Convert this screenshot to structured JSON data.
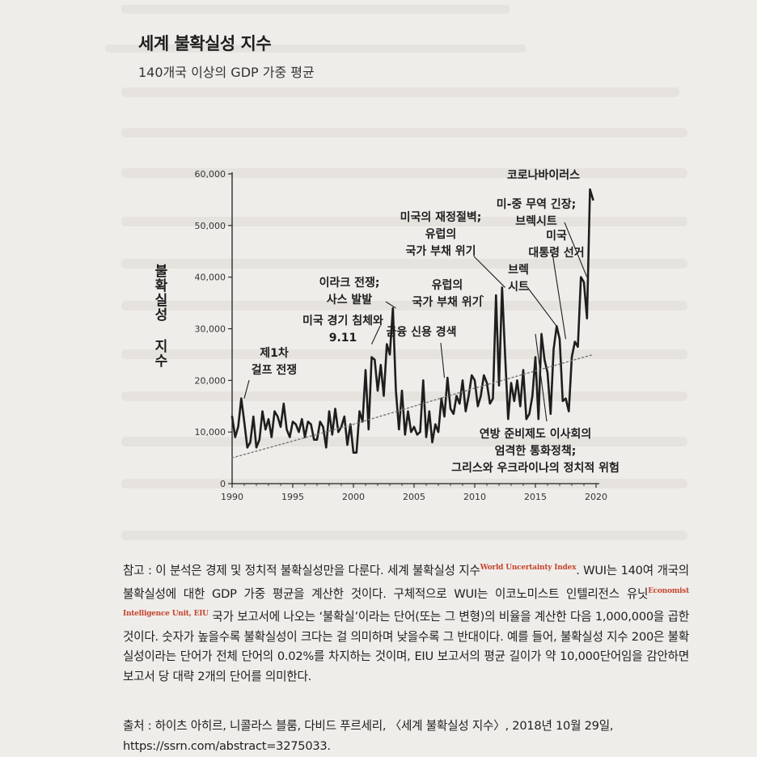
{
  "title": "세계 불확실성 지수",
  "subtitle": "140개국 이상의 GDP 가중 평균",
  "chart_data": {
    "type": "line",
    "title": "세계 불확실성 지수",
    "subtitle": "140개국 이상의 GDP 가중 평균",
    "ylabel": "불확실성 지수",
    "xlabel": "",
    "xlim": [
      1990,
      2020
    ],
    "ylim": [
      0,
      60000
    ],
    "x_ticks": [
      1990,
      1995,
      2000,
      2005,
      2010,
      2015,
      2020
    ],
    "x_tick_labels": [
      "1990",
      "1995",
      "2000",
      "2005",
      "2010",
      "2015",
      "2020"
    ],
    "y_ticks": [
      0,
      10000,
      20000,
      30000,
      40000,
      50000,
      60000
    ],
    "y_tick_labels": [
      "0",
      "10,000",
      "20,000",
      "30,000",
      "40,000",
      "50,000",
      "60,000"
    ],
    "grid": false,
    "series": [
      {
        "style": "solid",
        "x": [
          1990.0,
          1990.25,
          1990.5,
          1990.75,
          1991.0,
          1991.25,
          1991.5,
          1991.75,
          1992.0,
          1992.25,
          1992.5,
          1992.75,
          1993.0,
          1993.25,
          1993.5,
          1993.75,
          1994.0,
          1994.25,
          1994.5,
          1994.75,
          1995.0,
          1995.25,
          1995.5,
          1995.75,
          1996.0,
          1996.25,
          1996.5,
          1996.75,
          1997.0,
          1997.25,
          1997.5,
          1997.75,
          1998.0,
          1998.25,
          1998.5,
          1998.75,
          1999.0,
          1999.25,
          1999.5,
          1999.75,
          2000.0,
          2000.25,
          2000.5,
          2000.75,
          2001.0,
          2001.25,
          2001.5,
          2001.75,
          2002.0,
          2002.25,
          2002.5,
          2002.75,
          2003.0,
          2003.25,
          2003.5,
          2003.75,
          2004.0,
          2004.25,
          2004.5,
          2004.75,
          2005.0,
          2005.25,
          2005.5,
          2005.75,
          2006.0,
          2006.25,
          2006.5,
          2006.75,
          2007.0,
          2007.25,
          2007.5,
          2007.75,
          2008.0,
          2008.25,
          2008.5,
          2008.75,
          2009.0,
          2009.25,
          2009.5,
          2009.75,
          2010.0,
          2010.25,
          2010.5,
          2010.75,
          2011.0,
          2011.25,
          2011.5,
          2011.75,
          2012.0,
          2012.25,
          2012.5,
          2012.75,
          2013.0,
          2013.25,
          2013.5,
          2013.75,
          2014.0,
          2014.25,
          2014.5,
          2014.75,
          2015.0,
          2015.25,
          2015.5,
          2015.75,
          2016.0,
          2016.25,
          2016.5,
          2016.75,
          2017.0,
          2017.25,
          2017.5,
          2017.75,
          2018.0,
          2018.25,
          2018.5,
          2018.75,
          2019.0,
          2019.25,
          2019.5,
          2019.75
        ],
        "y": [
          13000,
          9000,
          11000,
          16500,
          12000,
          7000,
          8000,
          13000,
          7000,
          8500,
          14000,
          10500,
          12500,
          9000,
          14000,
          13000,
          11000,
          15500,
          10500,
          9000,
          12000,
          11500,
          10000,
          12500,
          9000,
          12000,
          11500,
          8500,
          8500,
          12000,
          11000,
          7000,
          14000,
          9500,
          14500,
          10000,
          11000,
          13000,
          7500,
          11500,
          6000,
          6000,
          14000,
          12000,
          22000,
          10500,
          24500,
          24000,
          18000,
          23000,
          17000,
          27000,
          25000,
          34000,
          18000,
          10500,
          18000,
          9500,
          14000,
          10000,
          11000,
          9500,
          10000,
          20000,
          9000,
          14000,
          8000,
          11500,
          10000,
          16500,
          13000,
          20500,
          14500,
          13500,
          17000,
          15500,
          20000,
          14000,
          17000,
          21000,
          20000,
          15000,
          17000,
          21000,
          19500,
          15500,
          16500,
          36500,
          19000,
          38000,
          25000,
          12500,
          19500,
          16000,
          20000,
          15000,
          22000,
          12500,
          13500,
          17000,
          24500,
          12500,
          29000,
          24000,
          21500,
          13500,
          26000,
          30500,
          28000,
          16000,
          16500,
          14000,
          24500,
          27500,
          26500,
          40000,
          39000,
          32000,
          57000,
          55000
        ]
      },
      {
        "style": "dotted",
        "x": [
          1990,
          2000,
          2010,
          2019.75
        ],
        "y": [
          5000,
          11500,
          18500,
          25000
        ]
      }
    ],
    "annotations": [
      {
        "text": "제1차 걸프 전쟁",
        "lines": [
          "제1차",
          "걸프 전쟁"
        ],
        "x": 1991,
        "y": 16500
      },
      {
        "text": "이라크 전쟁; 사스 발발",
        "lines": [
          "이라크 전쟁;",
          "사스 발발"
        ],
        "x": 2003.5,
        "y": 34000
      },
      {
        "text": "미국 경기 침체와 9.11",
        "lines": [
          "미국 경기 침체와",
          "9.11"
        ],
        "x": 2001.5,
        "y": 27000
      },
      {
        "text": "금융 신용 경색",
        "lines": [
          "금융 신용 경색"
        ],
        "x": 2007.5,
        "y": 20500
      },
      {
        "text": "유럽의 국가 부채 위기",
        "lines": [
          "유럽의",
          "국가 부채 위기"
        ],
        "x": 2010.5,
        "y": 36500
      },
      {
        "text": "미국의 재정절벽; 유럽의 국가 부채 위기",
        "lines": [
          "미국의 재정절벽;",
          "유럽의",
          "국가 부채 위기"
        ],
        "x": 2012.5,
        "y": 38000
      },
      {
        "text": "연방 준비제도 이사회의 엄격한 통화정책; 그리스와 우크라이나의 정치적 위험",
        "lines": [
          "연방 준비제도 이사회의",
          "엄격한 통화정책;",
          "그리스와 우크라이나의 정치적 위험"
        ],
        "x": 2015,
        "y": 29000
      },
      {
        "text": "브렉 시트",
        "lines": [
          "브렉",
          "시트"
        ],
        "x": 2016.75,
        "y": 30500
      },
      {
        "text": "미국 대통령 선거",
        "lines": [
          "미국",
          "대통령 선거"
        ],
        "x": 2017.5,
        "y": 28000
      },
      {
        "text": "미-중 무역 긴장; 브렉시트",
        "lines": [
          "미-중 무역 긴장;",
          "브렉시트"
        ],
        "x": 2019.25,
        "y": 40000
      },
      {
        "text": "코로나바이러스",
        "lines": [
          "코로나바이러스"
        ],
        "x": 2019.75,
        "y": 55000
      }
    ]
  },
  "note": {
    "prefix": "참고 : 이 분석은 경제 및 정치적 불확실성만을 다룬다. 세계 불확실성 지수",
    "wui_sup": "World Uncertainty Index",
    "after_wui": ". WUI는 140여 개국의 불확실성에 대한 GDP 가중 평균을 계산한 것이다. 구체적으로 WUI는 이코노미스트 인텔리전스 유닛",
    "eiu_sup": "Economist Intelligence Unit, EIU",
    "rest": " 국가 보고서에 나오는 ‘불확실’이라는 단어(또는 그 변형)의 비율을 계산한 다음 1,000,000을 곱한 것이다. 숫자가 높을수록 불확실성이 크다는 걸 의미하며 낮을수록 그 반대이다. 예를 들어, 불확실성 지수 200은 불확실성이라는 단어가 전체 단어의 0.02%를 차지하는 것이며, EIU 보고서의 평균 길이가 약 10,000단어임을 감안하면 보고서 당 대략 2개의 단어를 의미한다."
  },
  "source": {
    "line1": "출처 : 하이츠 아히르, 니콜라스 블룸, 다비드 푸르세리, 〈세계 불확실성 지수〉, 2018년 10월 29일,",
    "line2": "https://ssrn.com/abstract=3275033."
  },
  "colors": {
    "page": "#efedea",
    "ink": "#1e1e1e",
    "sup_red": "#c6452e",
    "trend": "#777777"
  }
}
